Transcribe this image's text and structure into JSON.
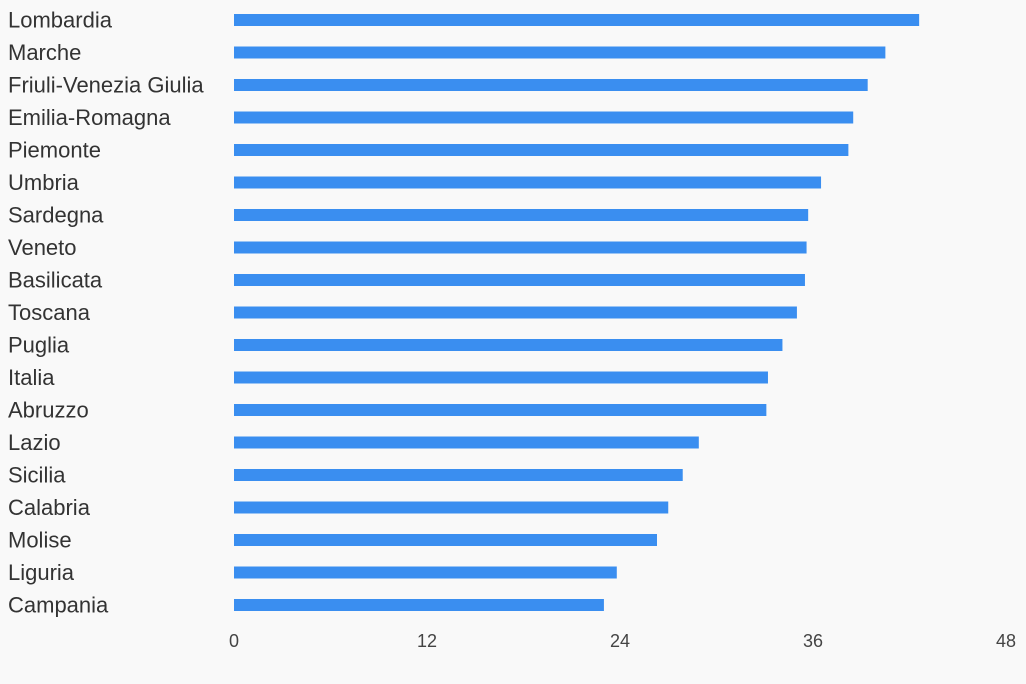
{
  "chart_data": {
    "type": "bar",
    "orientation": "horizontal",
    "title": "",
    "xlabel": "",
    "ylabel": "",
    "categories": [
      "Lombardia",
      "Marche",
      "Friuli-Venezia Giulia",
      "Emilia-Romagna",
      "Piemonte",
      "Umbria",
      "Sardegna",
      "Veneto",
      "Basilicata",
      "Toscana",
      "Puglia",
      "Italia",
      "Abruzzo",
      "Lazio",
      "Sicilia",
      "Calabria",
      "Molise",
      "Liguria",
      "Campania"
    ],
    "values": [
      42.6,
      40.5,
      39.4,
      38.5,
      38.2,
      36.5,
      35.7,
      35.6,
      35.5,
      35.0,
      34.1,
      33.2,
      33.1,
      28.9,
      27.9,
      27.0,
      26.3,
      23.8,
      23.0
    ],
    "xlim": [
      0,
      48
    ],
    "xticks": [
      "0",
      "12",
      "24",
      "36",
      "48"
    ],
    "grid": false,
    "legend": "none",
    "bar_color": "#3a8ef0"
  }
}
